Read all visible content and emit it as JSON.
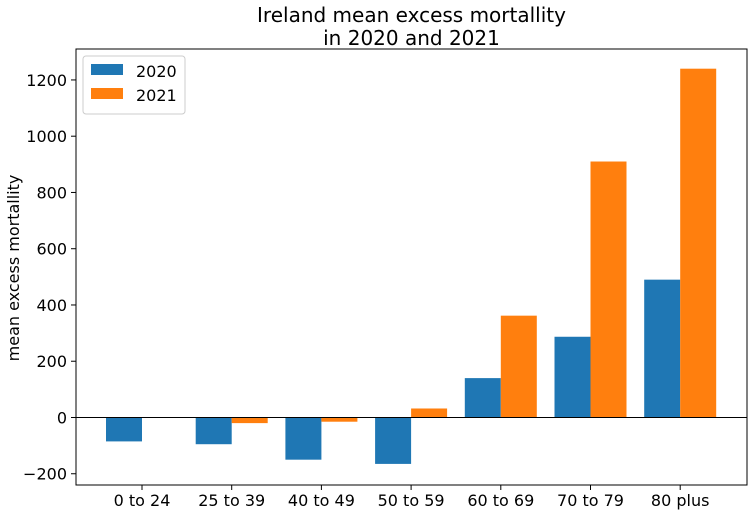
{
  "chart_data": {
    "type": "bar",
    "title": [
      "Ireland mean excess mortallity",
      "in 2020 and 2021"
    ],
    "xlabel": "",
    "ylabel": "mean excess mortallity",
    "categories": [
      "0 to 24",
      "25 to 39",
      "40 to 49",
      "50 to 59",
      "60 to 69",
      "70 to 79",
      "80 plus"
    ],
    "series": [
      {
        "name": "2020",
        "color": "#1f77b4",
        "values": [
          -85,
          -95,
          -150,
          -165,
          140,
          287,
          490
        ]
      },
      {
        "name": "2021",
        "color": "#ff7f0e",
        "values": [
          0,
          -20,
          -15,
          32,
          362,
          910,
          1240
        ]
      }
    ],
    "ylim": [
      -240,
      1310
    ],
    "yticks": [
      -200,
      0,
      200,
      400,
      600,
      800,
      1000,
      1200
    ],
    "grid": false,
    "zero_line": true,
    "legend": "upper-left"
  }
}
